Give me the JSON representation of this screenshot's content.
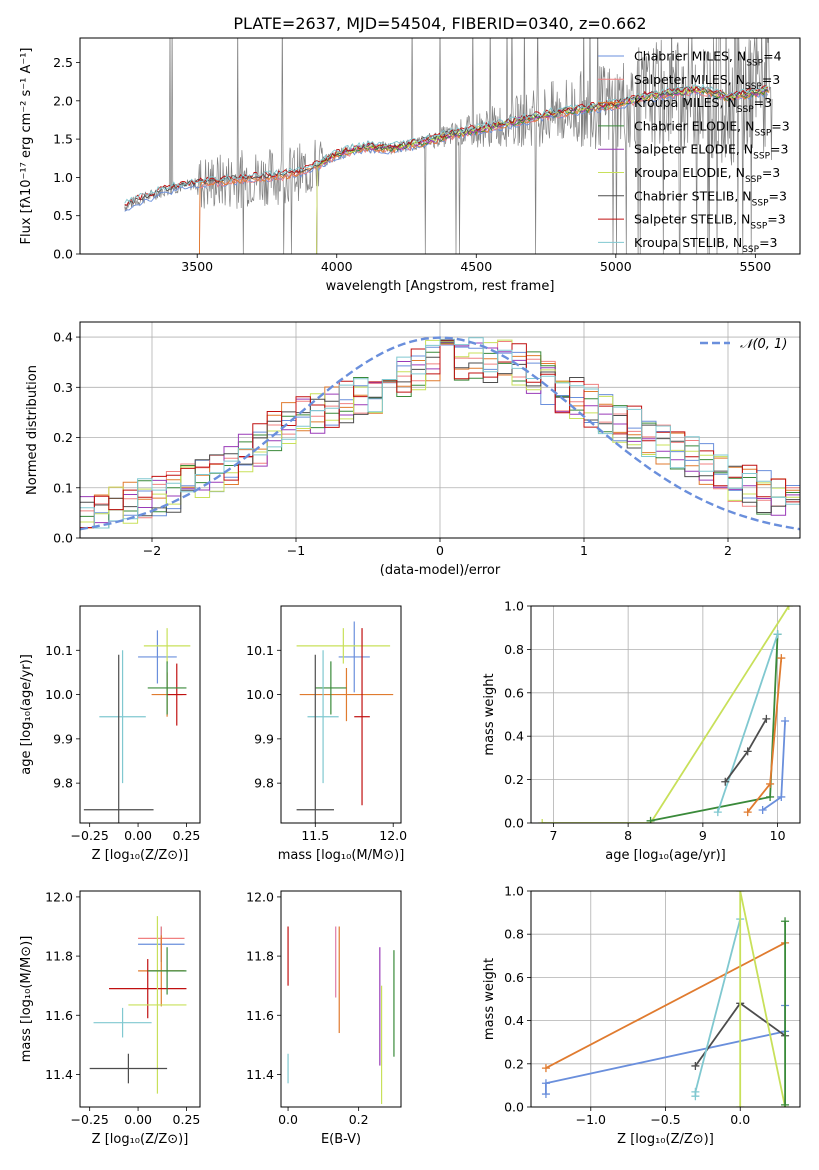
{
  "figure": {
    "title": "PLATE=2637, MJD=54504, FIBERID=0340, z=0.662",
    "colors": {
      "blue": "#6a8fdc",
      "salmon": "#f08080",
      "orange": "#e07b2f",
      "green": "#3a8a3a",
      "pink": "#e07ba7",
      "yellowgreen": "#c8e05a",
      "darkgray": "#4d4d4d",
      "red": "#c01010",
      "lightblue": "#80c8d0",
      "gray": "#808080",
      "purple": "#9a3ab8"
    }
  },
  "chart_data": [
    {
      "id": "spectrum",
      "type": "line",
      "title": "PLATE=2637, MJD=54504, FIBERID=0340, z=0.662",
      "xlabel": "wavelength [Angstrom, rest frame]",
      "ylabel": "Flux [fλ10⁻¹⁷ erg cm⁻² s⁻¹ A⁻¹]",
      "xlim": [
        3080,
        5660
      ],
      "ylim": [
        0,
        2.82
      ],
      "xticks": [
        3500,
        4000,
        4500,
        5000,
        5500
      ],
      "yticks": [
        0.0,
        0.5,
        1.0,
        1.5,
        2.0,
        2.5
      ],
      "legend_position": "top-right",
      "series": [
        {
          "name": "Chabrier MILES, N_SSP=4",
          "color": "#6a8fdc"
        },
        {
          "name": "Salpeter MILES, N_SSP=3",
          "color": "#f08080"
        },
        {
          "name": "Kroupa MILES, N_SSP=3",
          "color": "#e07b2f"
        },
        {
          "name": "Chabrier ELODIE, N_SSP=3",
          "color": "#3a8a3a"
        },
        {
          "name": "Salpeter ELODIE, N_SSP=3",
          "color": "#9a3ab8"
        },
        {
          "name": "Kroupa ELODIE, N_SSP=3",
          "color": "#c8e05a"
        },
        {
          "name": "Chabrier STELIB, N_SSP=3",
          "color": "#4d4d4d"
        },
        {
          "name": "Salpeter STELIB, N_SSP=3",
          "color": "#c01010"
        },
        {
          "name": "Kroupa STELIB, N_SSP=3",
          "color": "#80c8d0"
        }
      ],
      "model_continuum": {
        "x": [
          3240,
          3300,
          3400,
          3500,
          3600,
          3700,
          3800,
          3900,
          4000,
          4100,
          4200,
          4300,
          4400,
          4500,
          4600,
          4700,
          4800,
          4900,
          5000,
          5100,
          5200,
          5300,
          5400,
          5500,
          5550
        ],
        "y": [
          0.62,
          0.72,
          0.85,
          0.92,
          0.95,
          1.0,
          1.02,
          1.1,
          1.3,
          1.4,
          1.38,
          1.45,
          1.55,
          1.62,
          1.7,
          1.78,
          1.85,
          1.9,
          1.95,
          2.05,
          2.1,
          2.15,
          2.05,
          2.1,
          2.15
        ]
      }
    },
    {
      "id": "residuals",
      "type": "line",
      "xlabel": "(data-model)/error",
      "ylabel": "Normed distribution",
      "xlim": [
        -2.5,
        2.5
      ],
      "ylim": [
        0,
        0.43
      ],
      "xticks": [
        -2,
        -1,
        0,
        1,
        2
      ],
      "yticks": [
        0.0,
        0.1,
        0.2,
        0.3,
        0.4
      ],
      "grid": true,
      "legend": "𝒩(0, 1)",
      "legend_position": "top-right",
      "gaussian": {
        "mean": 0,
        "sigma": 1,
        "style": "dashed",
        "color": "#6a8fdc"
      },
      "hist_envelope": {
        "x": [
          -2.5,
          -2.0,
          -1.5,
          -1.0,
          -0.5,
          0.0,
          0.5,
          1.0,
          1.5,
          2.0,
          2.5
        ],
        "y": [
          0.04,
          0.08,
          0.13,
          0.24,
          0.28,
          0.36,
          0.35,
          0.27,
          0.2,
          0.12,
          0.06
        ]
      }
    },
    {
      "id": "z-age",
      "type": "scatter",
      "xlabel": "Z [log₁₀(Z/Z⊙)]",
      "ylabel": "age  [log₁₀(age/yr)]",
      "xlim": [
        -0.3,
        0.32
      ],
      "ylim": [
        9.71,
        10.2
      ],
      "xticks": [
        -0.25,
        0.0,
        0.25
      ],
      "yticks": [
        9.8,
        9.9,
        10.0,
        10.1
      ],
      "points": [
        {
          "x": 0.1,
          "y": 10.085,
          "xerr": 0.1,
          "yerr": 0.06,
          "color": "#6a8fdc"
        },
        {
          "x": 0.15,
          "y": 10.0,
          "xerr": 0.08,
          "yerr": 0.05,
          "color": "#e07b2f"
        },
        {
          "x": 0.2,
          "y": 10.0,
          "xerr": 0.05,
          "yerr": 0.07,
          "color": "#c01010"
        },
        {
          "x": 0.15,
          "y": 10.11,
          "xerr": 0.12,
          "yerr": 0.04,
          "color": "#c8e05a"
        },
        {
          "x": 0.15,
          "y": 10.015,
          "xerr": 0.1,
          "yerr": 0.06,
          "color": "#3a8a3a"
        },
        {
          "x": -0.08,
          "y": 9.95,
          "xerr": 0.12,
          "yerr": 0.15,
          "color": "#80c8d0"
        },
        {
          "x": -0.1,
          "y": 9.74,
          "xerr": 0.18,
          "yerr": 0.35,
          "color": "#4d4d4d"
        }
      ]
    },
    {
      "id": "mass-age",
      "type": "scatter",
      "xlabel": "mass [log₁₀(M/M⊙)]",
      "xlim": [
        11.28,
        12.05
      ],
      "ylim": [
        9.71,
        10.2
      ],
      "xticks": [
        11.5,
        12.0
      ],
      "yticks": [
        9.8,
        9.9,
        10.0,
        10.1
      ],
      "points": [
        {
          "x": 11.75,
          "y": 10.085,
          "xerr": 0.1,
          "yerr": 0.08,
          "color": "#6a8fdc"
        },
        {
          "x": 11.7,
          "y": 10.0,
          "xerr": 0.3,
          "yerr": 0.06,
          "color": "#e07b2f"
        },
        {
          "x": 11.68,
          "y": 10.11,
          "xerr": 0.3,
          "yerr": 0.04,
          "color": "#c8e05a"
        },
        {
          "x": 11.6,
          "y": 10.015,
          "xerr": 0.1,
          "yerr": 0.06,
          "color": "#3a8a3a"
        },
        {
          "x": 11.55,
          "y": 9.95,
          "xerr": 0.1,
          "yerr": 0.15,
          "color": "#80c8d0"
        },
        {
          "x": 11.5,
          "y": 9.74,
          "xerr": 0.12,
          "yerr": 0.35,
          "color": "#4d4d4d"
        },
        {
          "x": 11.8,
          "y": 9.95,
          "xerr": 0.05,
          "yerr": 0.2,
          "color": "#c01010"
        }
      ]
    },
    {
      "id": "age-weight",
      "type": "line",
      "xlabel": "age  [log₁₀(age/yr)]",
      "ylabel": "mass weight",
      "xlim": [
        6.7,
        10.3
      ],
      "ylim": [
        0,
        1
      ],
      "xticks": [
        7,
        8,
        9,
        10
      ],
      "yticks": [
        0.0,
        0.2,
        0.4,
        0.6,
        0.8,
        1.0
      ],
      "grid": true,
      "series": [
        {
          "color": "#c8e05a",
          "x": [
            6.85,
            8.3,
            10.15
          ],
          "y": [
            0.0,
            0.0,
            1.0
          ]
        },
        {
          "color": "#3a8a3a",
          "x": [
            8.3,
            9.9,
            10.0
          ],
          "y": [
            0.01,
            0.12,
            0.87
          ]
        },
        {
          "color": "#80c8d0",
          "x": [
            9.2,
            10.0
          ],
          "y": [
            0.05,
            0.87
          ]
        },
        {
          "color": "#4d4d4d",
          "x": [
            9.3,
            9.6,
            9.85
          ],
          "y": [
            0.19,
            0.33,
            0.48
          ]
        },
        {
          "color": "#e07b2f",
          "x": [
            9.6,
            9.9,
            10.05
          ],
          "y": [
            0.05,
            0.18,
            0.76
          ]
        },
        {
          "color": "#6a8fdc",
          "x": [
            9.8,
            10.05,
            10.1
          ],
          "y": [
            0.06,
            0.12,
            0.47
          ]
        }
      ]
    },
    {
      "id": "z-mass",
      "type": "scatter",
      "xlabel": "Z [log₁₀(Z/Z⊙)]",
      "ylabel": "mass [log₁₀(M/M⊙)]",
      "xlim": [
        -0.3,
        0.32
      ],
      "ylim": [
        11.29,
        12.02
      ],
      "xticks": [
        -0.25,
        0.0,
        0.25
      ],
      "yticks": [
        11.4,
        11.6,
        11.8,
        12.0
      ],
      "points": [
        {
          "x": 0.12,
          "y": 11.84,
          "xerr": 0.12,
          "yerr": 0.06,
          "color": "#6a8fdc"
        },
        {
          "x": 0.12,
          "y": 11.86,
          "xerr": 0.12,
          "yerr": 0.04,
          "color": "#f08080"
        },
        {
          "x": 0.12,
          "y": 11.75,
          "xerr": 0.12,
          "yerr": 0.12,
          "color": "#e07b2f"
        },
        {
          "x": 0.05,
          "y": 11.69,
          "xerr": 0.2,
          "yerr": 0.1,
          "color": "#c01010"
        },
        {
          "x": 0.1,
          "y": 11.635,
          "xerr": 0.15,
          "yerr": 0.3,
          "color": "#c8e05a"
        },
        {
          "x": 0.15,
          "y": 11.75,
          "xerr": 0.1,
          "yerr": 0.08,
          "color": "#3a8a3a"
        },
        {
          "x": -0.08,
          "y": 11.575,
          "xerr": 0.15,
          "yerr": 0.05,
          "color": "#80c8d0"
        },
        {
          "x": -0.05,
          "y": 11.42,
          "xerr": 0.2,
          "yerr": 0.05,
          "color": "#4d4d4d"
        }
      ]
    },
    {
      "id": "ebv-mass",
      "type": "scatter",
      "xlabel": "E(B-V)",
      "xlim": [
        -0.02,
        0.32
      ],
      "ylim": [
        11.29,
        12.02
      ],
      "xticks": [
        0.0,
        0.2
      ],
      "yticks": [
        11.4,
        11.6,
        11.8,
        12.0
      ],
      "points": [
        {
          "x": 0.0,
          "y": 11.8,
          "yerr": 0.1,
          "color": "#c01010"
        },
        {
          "x": 0.135,
          "y": 11.78,
          "yerr": 0.12,
          "color": "#e07ba7"
        },
        {
          "x": 0.145,
          "y": 11.72,
          "yerr": 0.18,
          "color": "#e07b2f"
        },
        {
          "x": 0.26,
          "y": 11.63,
          "yerr": 0.2,
          "color": "#9a3ab8"
        },
        {
          "x": 0.265,
          "y": 11.5,
          "yerr": 0.2,
          "color": "#c8e05a"
        },
        {
          "x": 0.3,
          "y": 11.64,
          "yerr": 0.18,
          "color": "#3a8a3a"
        },
        {
          "x": 0.0,
          "y": 11.42,
          "yerr": 0.05,
          "color": "#80c8d0"
        }
      ]
    },
    {
      "id": "z-weight",
      "type": "line",
      "xlabel": "Z [log₁₀(Z/Z⊙)]",
      "ylabel": "mass weight",
      "xlim": [
        -1.4,
        0.4
      ],
      "ylim": [
        0,
        1
      ],
      "xticks": [
        -1.0,
        -0.5,
        0.0
      ],
      "yticks": [
        0.0,
        0.2,
        0.4,
        0.6,
        0.8,
        1.0
      ],
      "grid": true,
      "series": [
        {
          "color": "#e07b2f",
          "x": [
            -1.3,
            0.3
          ],
          "y": [
            0.18,
            0.76
          ]
        },
        {
          "color": "#6a8fdc",
          "x": [
            -1.3,
            -1.3,
            0.3,
            0.3
          ],
          "y": [
            0.06,
            0.11,
            0.35,
            0.47
          ]
        },
        {
          "color": "#4d4d4d",
          "x": [
            -0.3,
            0.0,
            0.3
          ],
          "y": [
            0.19,
            0.48,
            0.33
          ]
        },
        {
          "color": "#80c8d0",
          "x": [
            -0.3,
            -0.3,
            0.0
          ],
          "y": [
            0.05,
            0.07,
            0.87
          ]
        },
        {
          "color": "#c8e05a",
          "x": [
            0.0,
            0.0,
            0.3
          ],
          "y": [
            0.0,
            1.0,
            0.0
          ]
        },
        {
          "color": "#3a8a3a",
          "x": [
            0.3,
            0.3
          ],
          "y": [
            0.01,
            0.86
          ]
        }
      ]
    }
  ]
}
